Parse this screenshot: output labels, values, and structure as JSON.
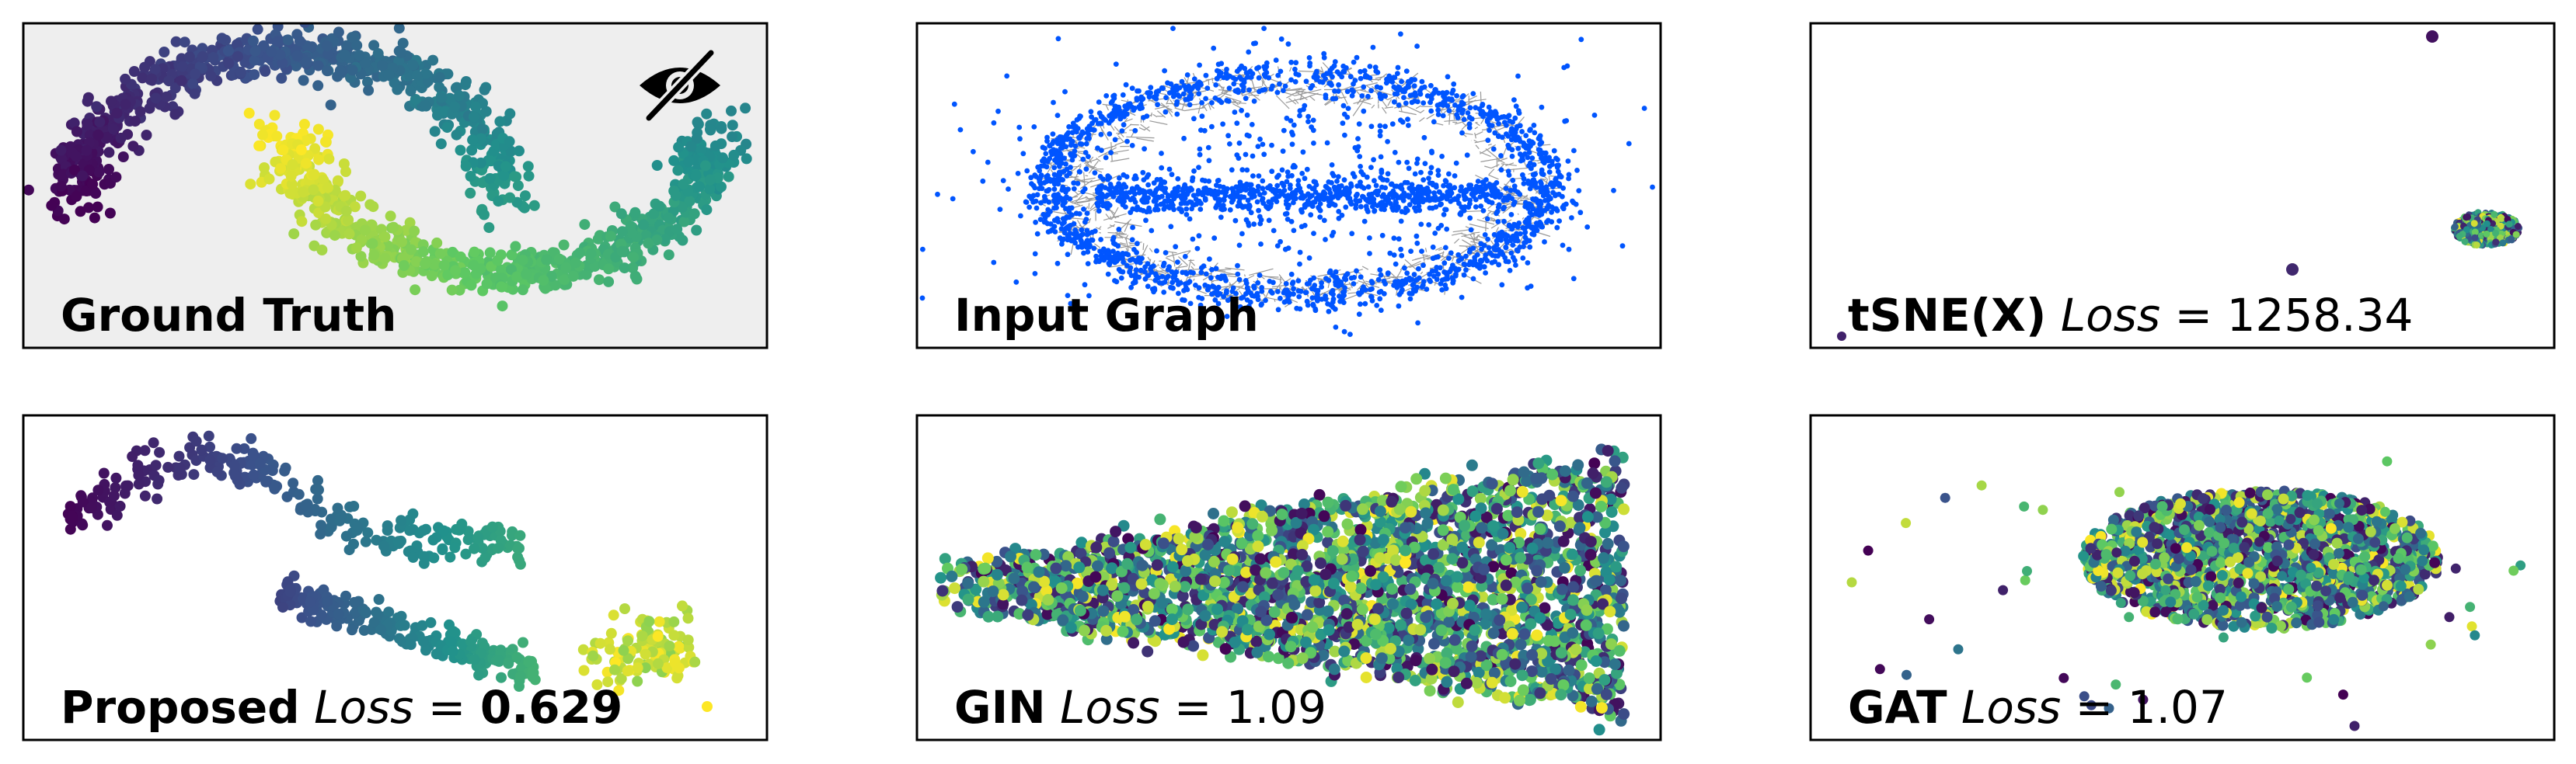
{
  "figure": {
    "panels": [
      {
        "id": "ground-truth",
        "title": "Ground Truth",
        "loss_word": "",
        "loss_value": "",
        "loss_bold": false,
        "background": "#eeeeee",
        "hidden_icon": "eye-slash-icon"
      },
      {
        "id": "input-graph",
        "title": "Input Graph",
        "loss_word": "",
        "loss_value": "",
        "loss_bold": false,
        "background": "#ffffff",
        "hidden_icon": ""
      },
      {
        "id": "tsne",
        "title": "tSNE(X)",
        "loss_word": "Loss",
        "loss_value": "1258.34",
        "loss_bold": false,
        "background": "#ffffff",
        "hidden_icon": ""
      },
      {
        "id": "proposed",
        "title": "Proposed",
        "loss_word": "Loss",
        "loss_value": "0.629",
        "loss_bold": true,
        "background": "#ffffff",
        "hidden_icon": ""
      },
      {
        "id": "gin",
        "title": "GIN",
        "loss_word": "Loss",
        "loss_value": "1.09",
        "loss_bold": false,
        "background": "#ffffff",
        "hidden_icon": ""
      },
      {
        "id": "gat",
        "title": "GAT",
        "loss_word": "Loss",
        "loss_value": "1.07",
        "loss_bold": false,
        "background": "#ffffff",
        "hidden_icon": ""
      }
    ],
    "colormap": [
      "#440154",
      "#3b528b",
      "#21918c",
      "#5ec962",
      "#fde725"
    ],
    "graph_node_color": "#0055ff",
    "graph_edge_color": "#999999"
  },
  "chart_data": [
    {
      "type": "scatter",
      "panel": "ground-truth",
      "shape": "two-moons",
      "color_encoding": "viridis along moon",
      "points_approx": 1500
    },
    {
      "type": "scatter",
      "panel": "input-graph",
      "shape": "ring-graph",
      "color_encoding": "single color nodes with gray edges",
      "points_approx": 3000
    },
    {
      "type": "scatter",
      "panel": "tsne",
      "shape": "compact ellipse with outliers",
      "loss": 1258.34
    },
    {
      "type": "scatter",
      "panel": "proposed",
      "shape": "two separated arcs",
      "loss": 0.629
    },
    {
      "type": "scatter",
      "panel": "gin",
      "shape": "mixed wedge",
      "loss": 1.09
    },
    {
      "type": "scatter",
      "panel": "gat",
      "shape": "mixed ellipse",
      "loss": 1.07
    }
  ]
}
